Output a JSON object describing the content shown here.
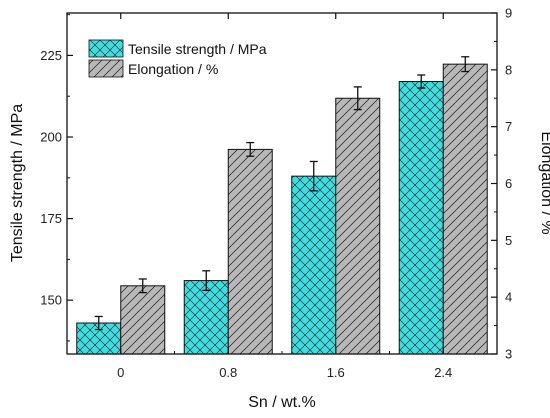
{
  "chart_data": {
    "type": "bar",
    "categories": [
      "0",
      "0.8",
      "1.6",
      "2.4"
    ],
    "xlabel": "Sn / wt.%",
    "series": [
      {
        "name": "Tensile strength / MPa",
        "axis": "left",
        "values": [
          143,
          156,
          188,
          217
        ],
        "errors": [
          2,
          3,
          4.5,
          2
        ],
        "color": "#3fdde0",
        "hatch": "crosshatch"
      },
      {
        "name": "Elongation / %",
        "axis": "right",
        "values": [
          4.2,
          6.6,
          7.5,
          8.1
        ],
        "errors": [
          0.12,
          0.12,
          0.2,
          0.13
        ],
        "color": "#b8b8b8",
        "hatch": "diagonal"
      }
    ],
    "left_axis": {
      "label": "Tensile strength / MPa",
      "ylim": [
        133.5,
        238
      ],
      "ticks": [
        150,
        175,
        200,
        225
      ],
      "tick_labels": [
        "150",
        "175",
        "200",
        "225"
      ]
    },
    "right_axis": {
      "label": "Elongation / %",
      "ylim": [
        3,
        9
      ],
      "ticks": [
        3,
        4,
        5,
        6,
        7,
        8,
        9
      ],
      "tick_labels": [
        "3",
        "4",
        "5",
        "6",
        "7",
        "8",
        "9"
      ]
    },
    "legend_position": "top-left",
    "grid": false
  }
}
